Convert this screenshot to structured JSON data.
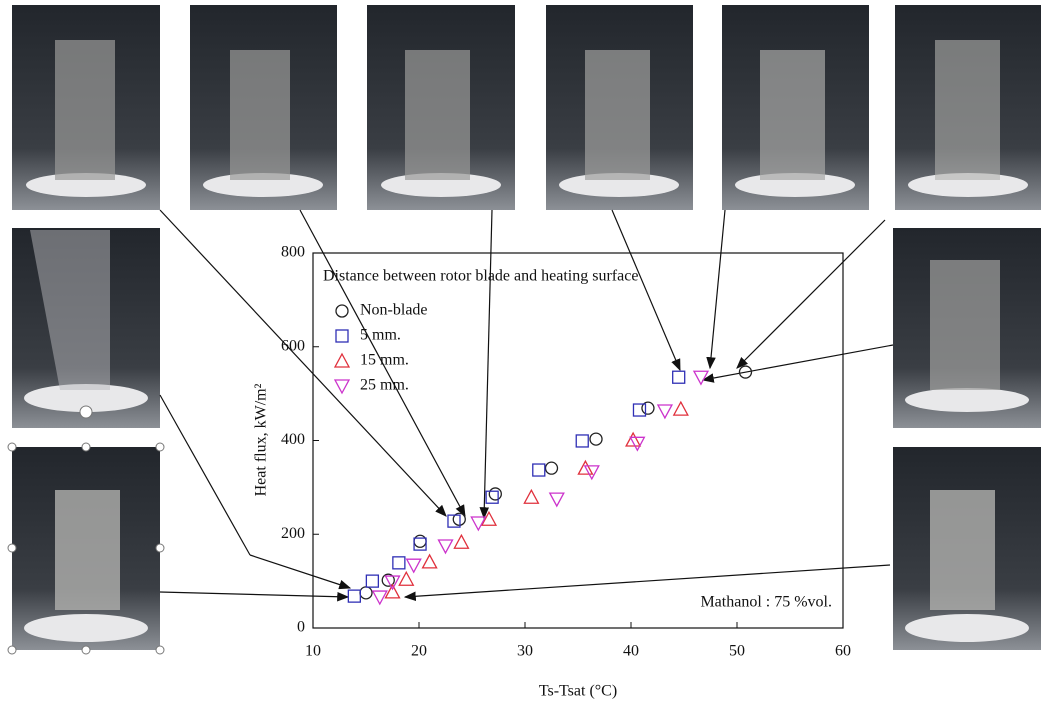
{
  "chart_data": {
    "type": "scatter",
    "legend_title": "Distance between rotor blade and heating surface",
    "annotation": "Mathanol : 75 %vol.",
    "x_label": "Ts-Tsat (°C)",
    "y_label": "Heat flux, kW/m²",
    "xlim": [
      10,
      60
    ],
    "xticks": [
      10,
      20,
      30,
      40,
      50,
      60
    ],
    "ylim": [
      0,
      800
    ],
    "yticks": [
      0,
      200,
      400,
      600,
      800
    ],
    "series": [
      {
        "name": "Non-blade",
        "marker": "circle",
        "color": "#222222",
        "x": [
          15.0,
          17.1,
          20.1,
          23.8,
          27.2,
          32.5,
          36.7,
          41.6,
          50.8
        ],
        "values": [
          75,
          102,
          185,
          232,
          286,
          341,
          403,
          469,
          546
        ]
      },
      {
        "name": "5 mm.",
        "marker": "square",
        "color": "#2f2fb5",
        "x": [
          13.9,
          15.6,
          18.1,
          20.1,
          23.3,
          26.9,
          31.3,
          35.4,
          40.8,
          44.5
        ],
        "values": [
          68,
          100,
          139,
          179,
          228,
          279,
          337,
          399,
          465,
          535
        ]
      },
      {
        "name": "15 mm.",
        "marker": "triangle-up",
        "color": "#e0303c",
        "x": [
          17.5,
          18.8,
          21.0,
          24.0,
          26.6,
          30.6,
          35.7,
          40.2,
          44.7
        ],
        "values": [
          77,
          104,
          141,
          183,
          232,
          279,
          341,
          401,
          467
        ]
      },
      {
        "name": "25 mm.",
        "marker": "triangle-down",
        "color": "#cc33cc",
        "x": [
          16.3,
          17.5,
          19.5,
          22.5,
          25.6,
          33.0,
          36.3,
          40.6,
          43.2,
          46.6
        ],
        "values": [
          66,
          98,
          134,
          175,
          224,
          275,
          333,
          394,
          463,
          535
        ]
      }
    ]
  }
}
